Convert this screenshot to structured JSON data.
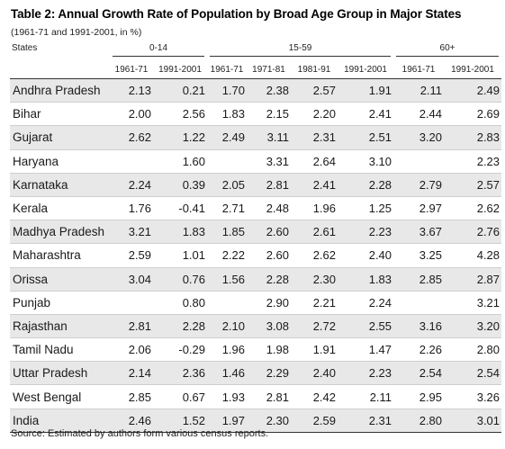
{
  "title": "Table 2: Annual Growth Rate of Population by Broad Age Group in Major States",
  "subtitle": "(1961-71 and 1991-2001, in %)",
  "headers": {
    "states": "States",
    "group_0_14": "0-14",
    "group_15_59": "15-59",
    "group_60plus": "60+",
    "cols": [
      "1961-71",
      "1991-2001",
      "1961-71",
      "1971-81",
      "1981-91",
      "1991-2001",
      "1961-71",
      "1991-2001"
    ]
  },
  "rows": [
    {
      "state": "Andhra Pradesh",
      "v": [
        "2.13",
        "0.21",
        "1.70",
        "2.38",
        "2.57",
        "1.91",
        "2.11",
        "2.49"
      ]
    },
    {
      "state": "Bihar",
      "v": [
        "2.00",
        "2.56",
        "1.83",
        "2.15",
        "2.20",
        "2.41",
        "2.44",
        "2.69"
      ]
    },
    {
      "state": "Gujarat",
      "v": [
        "2.62",
        "1.22",
        "2.49",
        "3.11",
        "2.31",
        "2.51",
        "3.20",
        "2.83"
      ]
    },
    {
      "state": "Haryana",
      "v": [
        "",
        "1.60",
        "",
        "3.31",
        "2.64",
        "3.10",
        "",
        "2.23"
      ]
    },
    {
      "state": "Karnataka",
      "v": [
        "2.24",
        "0.39",
        "2.05",
        "2.81",
        "2.41",
        "2.28",
        "2.79",
        "2.57"
      ]
    },
    {
      "state": "Kerala",
      "v": [
        "1.76",
        "-0.41",
        "2.71",
        "2.48",
        "1.96",
        "1.25",
        "2.97",
        "2.62"
      ]
    },
    {
      "state": "Madhya Pradesh",
      "v": [
        "3.21",
        "1.83",
        "1.85",
        "2.60",
        "2.61",
        "2.23",
        "3.67",
        "2.76"
      ]
    },
    {
      "state": "Maharashtra",
      "v": [
        "2.59",
        "1.01",
        "2.22",
        "2.60",
        "2.62",
        "2.40",
        "3.25",
        "4.28"
      ]
    },
    {
      "state": "Orissa",
      "v": [
        "3.04",
        "0.76",
        "1.56",
        "2.28",
        "2.30",
        "1.83",
        "2.85",
        "2.87"
      ]
    },
    {
      "state": "Punjab",
      "v": [
        "",
        "0.80",
        "",
        "2.90",
        "2.21",
        "2.24",
        "",
        "3.21"
      ]
    },
    {
      "state": "Rajasthan",
      "v": [
        "2.81",
        "2.28",
        "2.10",
        "3.08",
        "2.72",
        "2.55",
        "3.16",
        "3.20"
      ]
    },
    {
      "state": "Tamil Nadu",
      "v": [
        "2.06",
        "-0.29",
        "1.96",
        "1.98",
        "1.91",
        "1.47",
        "2.26",
        "2.80"
      ]
    },
    {
      "state": "Uttar Pradesh",
      "v": [
        "2.14",
        "2.36",
        "1.46",
        "2.29",
        "2.40",
        "2.23",
        "2.54",
        "2.54"
      ]
    },
    {
      "state": "West Bengal",
      "v": [
        "2.85",
        "0.67",
        "1.93",
        "2.81",
        "2.42",
        "2.11",
        "2.95",
        "3.26"
      ]
    },
    {
      "state": "India",
      "v": [
        "2.46",
        "1.52",
        "1.97",
        "2.30",
        "2.59",
        "2.31",
        "2.80",
        "3.01"
      ]
    }
  ],
  "source": "Source: Estimated by authors form various census reports.",
  "colors": {
    "alt_row": "#e8e8e8",
    "rule": "#333333"
  }
}
